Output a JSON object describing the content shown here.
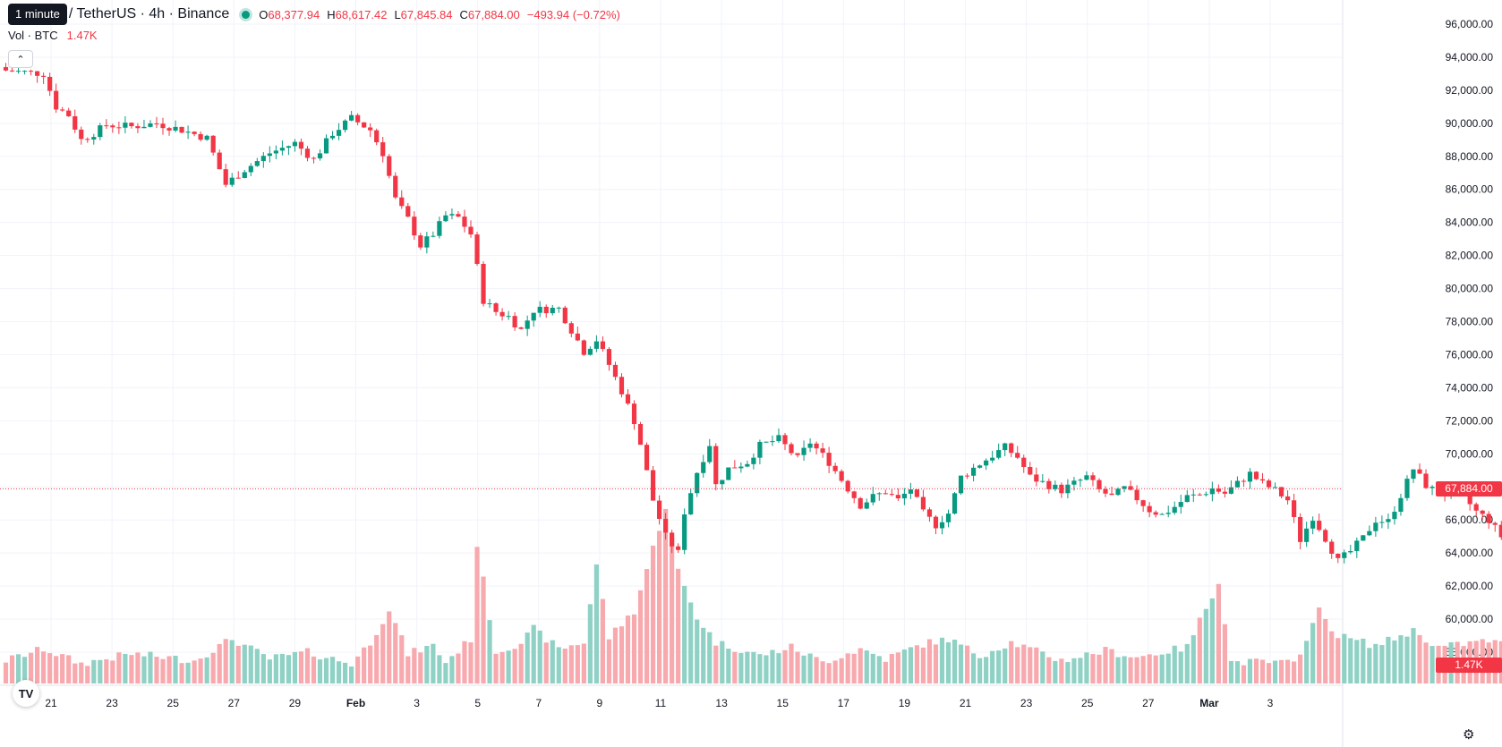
{
  "legend": {
    "tooltip": "1 minute",
    "title": "/ TetherUS · 4h · Binance",
    "ohlc": [
      {
        "key": "O",
        "value": "68,377.94"
      },
      {
        "key": "H",
        "value": "68,617.42"
      },
      {
        "key": "L",
        "value": "67,845.84"
      },
      {
        "key": "C",
        "value": "67,884.00"
      },
      {
        "key": "",
        "value": "−493.94 (−0.72%)"
      }
    ],
    "volume_label": "Vol · BTC",
    "volume_value": "1.47K"
  },
  "price_label": "67,884.00",
  "volume_label_right": "1.47K",
  "logo_text": "TV",
  "icons": {
    "collapse": "chevron-up-icon",
    "settings": "gear-icon",
    "logo": "tradingview-logo-icon"
  },
  "colors": {
    "up": "#089981",
    "down": "#f23645",
    "up_vol": "#8fd1c4",
    "down_vol": "#f7a9ae",
    "grid": "#f0f3fa"
  },
  "chart_data": {
    "type": "candlestick",
    "interval": "4h",
    "y_ticks": [
      96000,
      94000,
      92000,
      90000,
      88000,
      86000,
      84000,
      82000,
      80000,
      78000,
      76000,
      74000,
      72000,
      70000,
      68000,
      66000,
      64000,
      62000,
      60000,
      58000
    ],
    "y_tick_labels": [
      "96,000.00",
      "94,000.00",
      "92,000.00",
      "90,000.00",
      "88,000.00",
      "86,000.00",
      "84,000.00",
      "82,000.00",
      "80,000.00",
      "78,000.00",
      "76,000.00",
      "74,000.00",
      "72,000.00",
      "70,000.00",
      "68,000.00",
      "66,000.00",
      "64,000.00",
      "62,000.00",
      "60,000.00",
      "58,000.00"
    ],
    "ylim": [
      56500,
      96800
    ],
    "x_ticks": [
      "21",
      "23",
      "25",
      "27",
      "29",
      "Feb",
      "3",
      "5",
      "7",
      "9",
      "11",
      "13",
      "15",
      "17",
      "19",
      "21",
      "23",
      "25",
      "27",
      "Mar",
      "3"
    ],
    "current_price": 67884,
    "current_volume": "1.47K",
    "close_path": [
      [
        0,
        93200
      ],
      [
        6,
        93000
      ],
      [
        8,
        91000
      ],
      [
        10,
        90500
      ],
      [
        12,
        89000
      ],
      [
        14,
        89400
      ],
      [
        16,
        89900
      ],
      [
        20,
        89800
      ],
      [
        24,
        90000
      ],
      [
        28,
        89600
      ],
      [
        32,
        89100
      ],
      [
        35,
        86300
      ],
      [
        38,
        87200
      ],
      [
        42,
        88200
      ],
      [
        46,
        88800
      ],
      [
        49,
        87800
      ],
      [
        52,
        89400
      ],
      [
        55,
        90300
      ],
      [
        58,
        89600
      ],
      [
        60,
        88200
      ],
      [
        62,
        85400
      ],
      [
        64,
        84200
      ],
      [
        66,
        82600
      ],
      [
        68,
        83300
      ],
      [
        70,
        84400
      ],
      [
        72,
        84300
      ],
      [
        74,
        83300
      ],
      [
        76,
        79300
      ],
      [
        78,
        78600
      ],
      [
        80,
        78300
      ],
      [
        82,
        77500
      ],
      [
        84,
        78700
      ],
      [
        88,
        78800
      ],
      [
        90,
        77500
      ],
      [
        92,
        76200
      ],
      [
        94,
        76900
      ],
      [
        96,
        75400
      ],
      [
        98,
        73800
      ],
      [
        100,
        72000
      ],
      [
        101,
        70600
      ],
      [
        103,
        67200
      ],
      [
        105,
        65000
      ],
      [
        107,
        64000
      ],
      [
        108,
        66500
      ],
      [
        110,
        68900
      ],
      [
        112,
        70600
      ],
      [
        113,
        68100
      ],
      [
        115,
        69100
      ],
      [
        118,
        69500
      ],
      [
        120,
        70500
      ],
      [
        123,
        70900
      ],
      [
        125,
        70100
      ],
      [
        126,
        69700
      ],
      [
        128,
        70700
      ],
      [
        131,
        69500
      ],
      [
        134,
        67900
      ],
      [
        136,
        66900
      ],
      [
        138,
        67400
      ],
      [
        140,
        67700
      ],
      [
        142,
        67200
      ],
      [
        144,
        67900
      ],
      [
        146,
        66400
      ],
      [
        148,
        65700
      ],
      [
        150,
        66400
      ],
      [
        152,
        68600
      ],
      [
        155,
        69400
      ],
      [
        157,
        69900
      ],
      [
        159,
        70400
      ],
      [
        161,
        69800
      ],
      [
        163,
        68600
      ],
      [
        166,
        68100
      ],
      [
        168,
        67800
      ],
      [
        170,
        68200
      ],
      [
        172,
        68600
      ],
      [
        174,
        67800
      ],
      [
        176,
        67400
      ],
      [
        178,
        67900
      ],
      [
        180,
        67300
      ],
      [
        182,
        66600
      ],
      [
        184,
        66300
      ],
      [
        186,
        66800
      ],
      [
        188,
        67400
      ],
      [
        190,
        67500
      ],
      [
        192,
        67900
      ],
      [
        194,
        67600
      ],
      [
        196,
        68200
      ],
      [
        198,
        68800
      ],
      [
        200,
        68200
      ],
      [
        202,
        67800
      ],
      [
        204,
        67200
      ],
      [
        206,
        64800
      ],
      [
        208,
        66200
      ],
      [
        210,
        64900
      ],
      [
        212,
        63500
      ],
      [
        214,
        64100
      ],
      [
        216,
        64900
      ],
      [
        218,
        66000
      ],
      [
        220,
        65900
      ],
      [
        222,
        67500
      ],
      [
        224,
        69100
      ],
      [
        226,
        68100
      ],
      [
        228,
        67600
      ],
      [
        230,
        67600
      ],
      [
        232,
        67400
      ],
      [
        234,
        66500
      ],
      [
        236,
        66000
      ],
      [
        238,
        65000
      ],
      [
        240,
        64800
      ],
      [
        242,
        63800
      ],
      [
        244,
        65100
      ],
      [
        246,
        66400
      ],
      [
        248,
        67300
      ],
      [
        250,
        66500
      ],
      [
        252,
        66800
      ],
      [
        254,
        66400
      ],
      [
        256,
        67000
      ],
      [
        258,
        69500
      ],
      [
        260,
        68800
      ],
      [
        261,
        67884
      ]
    ],
    "volume_path": [
      [
        0,
        57500
      ],
      [
        6,
        58200
      ],
      [
        12,
        57300
      ],
      [
        20,
        57900
      ],
      [
        30,
        57500
      ],
      [
        36,
        58800
      ],
      [
        42,
        57600
      ],
      [
        48,
        58000
      ],
      [
        55,
        57300
      ],
      [
        58,
        58600
      ],
      [
        61,
        60600
      ],
      [
        64,
        57900
      ],
      [
        68,
        58400
      ],
      [
        70,
        57400
      ],
      [
        74,
        58800
      ],
      [
        75,
        64500
      ],
      [
        78,
        58000
      ],
      [
        82,
        58600
      ],
      [
        84,
        59400
      ],
      [
        88,
        58200
      ],
      [
        92,
        58600
      ],
      [
        94,
        63300
      ],
      [
        96,
        58900
      ],
      [
        100,
        60500
      ],
      [
        103,
        64300
      ],
      [
        105,
        66800
      ],
      [
        107,
        62900
      ],
      [
        110,
        60100
      ],
      [
        113,
        58600
      ],
      [
        120,
        57800
      ],
      [
        125,
        58300
      ],
      [
        130,
        57400
      ],
      [
        136,
        58200
      ],
      [
        140,
        57600
      ],
      [
        146,
        58500
      ],
      [
        150,
        58800
      ],
      [
        155,
        57800
      ],
      [
        160,
        58600
      ],
      [
        168,
        57500
      ],
      [
        175,
        58100
      ],
      [
        180,
        57700
      ],
      [
        188,
        58300
      ],
      [
        193,
        62300
      ],
      [
        195,
        57400
      ],
      [
        200,
        57400
      ],
      [
        205,
        57300
      ],
      [
        209,
        60500
      ],
      [
        212,
        59000
      ],
      [
        218,
        58400
      ],
      [
        224,
        59300
      ],
      [
        228,
        58300
      ],
      [
        236,
        58700
      ],
      [
        240,
        58300
      ],
      [
        246,
        58800
      ],
      [
        252,
        58000
      ],
      [
        256,
        58300
      ],
      [
        258,
        60400
      ],
      [
        260,
        58900
      ],
      [
        261,
        57700
      ]
    ]
  }
}
